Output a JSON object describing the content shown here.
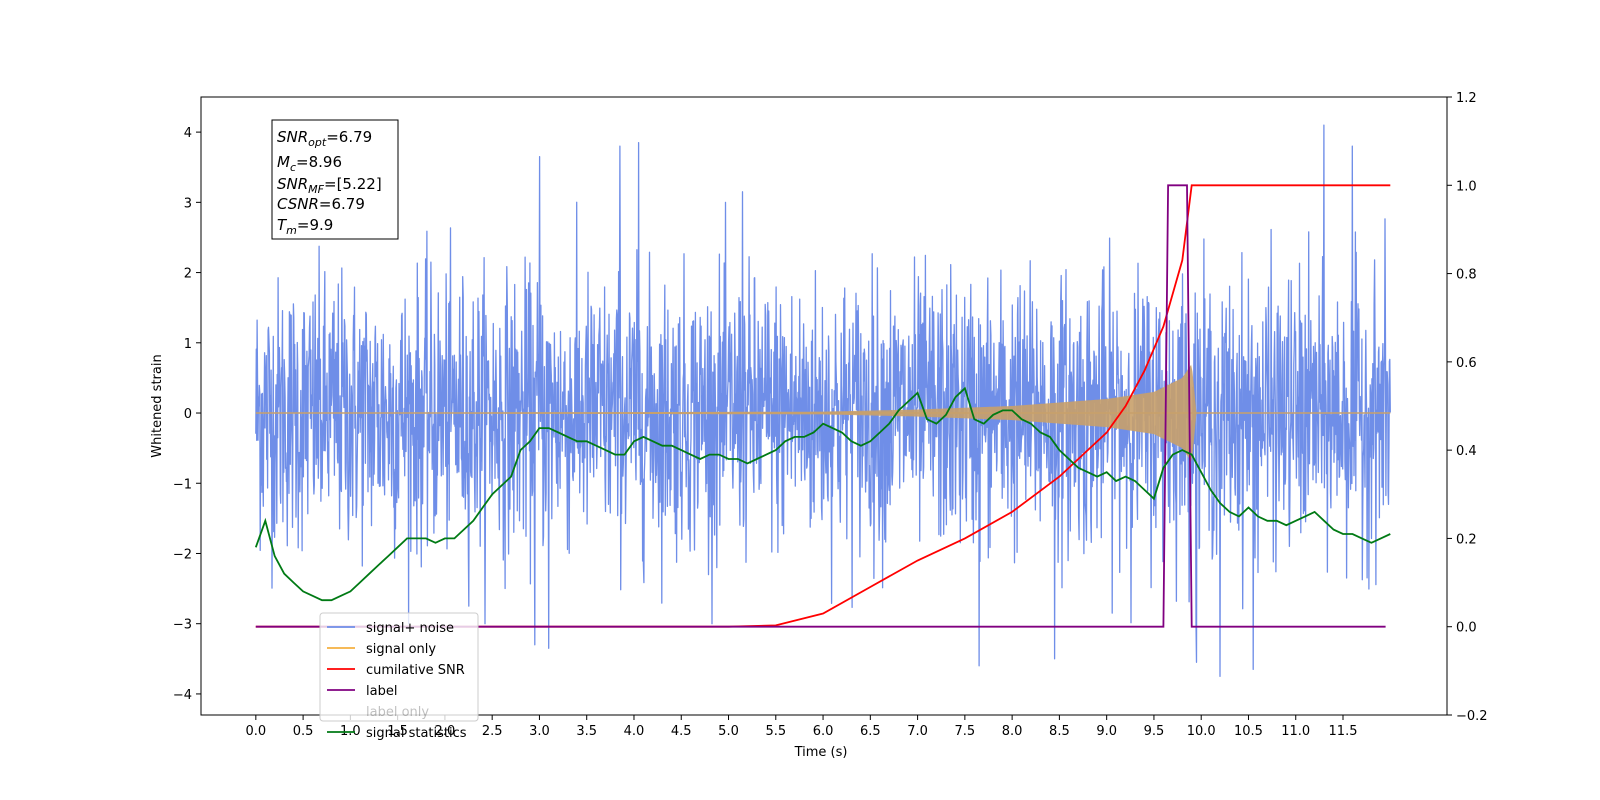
{
  "colors": {
    "signal_noise": "#6f8ee8",
    "signal_only": "#f5b041",
    "signal_fill": "#c8a06a",
    "cumulative_snr": "#ff0000",
    "label": "#800080",
    "signal_statistics": "#007a14"
  },
  "info_box": {
    "snr_opt_base": "SNR",
    "snr_opt_sub": "opt",
    "snr_opt_value": "=6.79",
    "mc_base": "M",
    "mc_sub": "c",
    "mc_value": "=8.96",
    "snr_mf_base": "SNR",
    "snr_mf_sub": "MF",
    "snr_mf_value": "=[5.22]",
    "csnr_text": "CSNR",
    "csnr_value": "=6.79",
    "tm_base": "T",
    "tm_sub": "m",
    "tm_value": "=9.9"
  },
  "chart_data": {
    "type": "line",
    "xlabel": "Time (s)",
    "ylabel_left": "Whitened strain",
    "ylabel_right": "",
    "xlim": [
      -0.58,
      12.6
    ],
    "ylim_left": [
      -4.3,
      4.5
    ],
    "ylim_right": [
      -0.2,
      1.2
    ],
    "x_ticks": [
      "0.0",
      "0.5",
      "1.0",
      "1.5",
      "2.0",
      "2.5",
      "3.0",
      "3.5",
      "4.0",
      "4.5",
      "5.0",
      "5.5",
      "6.0",
      "6.5",
      "7.0",
      "7.5",
      "8.0",
      "8.5",
      "9.0",
      "9.5",
      "10.0",
      "10.5",
      "11.0",
      "11.5"
    ],
    "y_ticks_left": [
      "4",
      "3",
      "2",
      "1",
      "0",
      "−1",
      "−2",
      "−3",
      "−4"
    ],
    "y_ticks_right": [
      "1.2",
      "1.0",
      "0.8",
      "0.6",
      "0.4",
      "0.2",
      "0.0",
      "−0.2"
    ],
    "legend": {
      "placement": "lower-left",
      "entries": [
        "signal+ noise",
        "signal only",
        "cumilative SNR",
        "label",
        "label only",
        "signal statistics"
      ]
    },
    "series": [
      {
        "name": "signal+ noise",
        "axis": "left",
        "x_range": [
          0.0,
          12.0
        ],
        "noise_std": 1.0,
        "extreme_peaks": [
          {
            "x": 3.0,
            "y": 3.65
          },
          {
            "x": 3.85,
            "y": 3.8
          },
          {
            "x": 4.05,
            "y": 3.85
          },
          {
            "x": 5.15,
            "y": 3.15
          },
          {
            "x": 11.3,
            "y": 4.1
          },
          {
            "x": 11.6,
            "y": 3.8
          },
          {
            "x": 2.95,
            "y": -3.3
          },
          {
            "x": 3.1,
            "y": -3.35
          },
          {
            "x": 7.65,
            "y": -3.6
          },
          {
            "x": 10.2,
            "y": -3.75
          },
          {
            "x": 10.55,
            "y": -3.65
          },
          {
            "x": 9.95,
            "y": -3.55
          },
          {
            "x": 8.45,
            "y": -3.5
          }
        ]
      },
      {
        "name": "signal only",
        "axis": "left",
        "type": "chirp",
        "merger_time": 9.9,
        "envelope": [
          [
            0,
            0
          ],
          [
            6,
            0.02
          ],
          [
            7,
            0.05
          ],
          [
            8,
            0.1
          ],
          [
            8.5,
            0.15
          ],
          [
            9,
            0.2
          ],
          [
            9.5,
            0.3
          ],
          [
            9.8,
            0.5
          ],
          [
            9.9,
            0.7
          ],
          [
            9.95,
            0.0
          ],
          [
            12,
            0.0
          ]
        ]
      },
      {
        "name": "cumilative SNR",
        "axis": "right",
        "x": [
          0,
          5.0,
          5.5,
          6.0,
          6.5,
          7.0,
          7.5,
          8.0,
          8.5,
          8.8,
          9.0,
          9.2,
          9.4,
          9.6,
          9.8,
          9.9,
          12.0
        ],
        "y": [
          0,
          0.0,
          0.003,
          0.03,
          0.09,
          0.15,
          0.2,
          0.26,
          0.34,
          0.4,
          0.44,
          0.5,
          0.58,
          0.68,
          0.83,
          1.0,
          1.0
        ]
      },
      {
        "name": "label",
        "axis": "right",
        "x": [
          0.0,
          9.6,
          9.65,
          9.85,
          9.9,
          11.95
        ],
        "y": [
          0.0,
          0.0,
          1.0,
          1.0,
          0.0,
          0.0
        ]
      },
      {
        "name": "signal statistics",
        "axis": "right",
        "x": [
          0.0,
          0.1,
          0.2,
          0.3,
          0.4,
          0.5,
          0.6,
          0.7,
          0.8,
          0.9,
          1.0,
          1.1,
          1.2,
          1.3,
          1.4,
          1.5,
          1.6,
          1.7,
          1.8,
          1.9,
          2.0,
          2.1,
          2.2,
          2.3,
          2.4,
          2.5,
          2.6,
          2.7,
          2.8,
          2.9,
          3.0,
          3.1,
          3.2,
          3.3,
          3.4,
          3.5,
          3.6,
          3.7,
          3.8,
          3.9,
          4.0,
          4.1,
          4.2,
          4.3,
          4.4,
          4.5,
          4.6,
          4.7,
          4.8,
          4.9,
          5.0,
          5.1,
          5.2,
          5.3,
          5.4,
          5.5,
          5.6,
          5.7,
          5.8,
          5.9,
          6.0,
          6.1,
          6.2,
          6.3,
          6.4,
          6.5,
          6.6,
          6.7,
          6.8,
          6.9,
          7.0,
          7.1,
          7.2,
          7.3,
          7.4,
          7.5,
          7.6,
          7.7,
          7.8,
          7.9,
          8.0,
          8.1,
          8.2,
          8.3,
          8.4,
          8.5,
          8.6,
          8.7,
          8.8,
          8.9,
          9.0,
          9.1,
          9.2,
          9.3,
          9.4,
          9.5,
          9.6,
          9.7,
          9.8,
          9.9,
          10.0,
          10.1,
          10.2,
          10.3,
          10.4,
          10.5,
          10.6,
          10.7,
          10.8,
          10.9,
          11.0,
          11.1,
          11.2,
          11.3,
          11.4,
          11.5,
          11.6,
          11.7,
          11.8,
          11.9,
          12.0
        ],
        "y": [
          0.18,
          0.24,
          0.16,
          0.12,
          0.1,
          0.08,
          0.07,
          0.06,
          0.06,
          0.07,
          0.08,
          0.1,
          0.12,
          0.14,
          0.16,
          0.18,
          0.2,
          0.2,
          0.2,
          0.19,
          0.2,
          0.2,
          0.22,
          0.24,
          0.27,
          0.3,
          0.32,
          0.34,
          0.4,
          0.42,
          0.45,
          0.45,
          0.44,
          0.43,
          0.42,
          0.42,
          0.41,
          0.4,
          0.39,
          0.39,
          0.42,
          0.43,
          0.42,
          0.41,
          0.41,
          0.4,
          0.39,
          0.38,
          0.39,
          0.39,
          0.38,
          0.38,
          0.37,
          0.38,
          0.39,
          0.4,
          0.42,
          0.43,
          0.43,
          0.44,
          0.46,
          0.45,
          0.44,
          0.42,
          0.41,
          0.42,
          0.44,
          0.46,
          0.49,
          0.51,
          0.53,
          0.47,
          0.46,
          0.48,
          0.52,
          0.54,
          0.47,
          0.46,
          0.48,
          0.49,
          0.49,
          0.47,
          0.46,
          0.44,
          0.43,
          0.4,
          0.38,
          0.36,
          0.35,
          0.34,
          0.35,
          0.33,
          0.34,
          0.33,
          0.31,
          0.29,
          0.36,
          0.39,
          0.4,
          0.39,
          0.35,
          0.31,
          0.28,
          0.26,
          0.25,
          0.27,
          0.25,
          0.24,
          0.24,
          0.23,
          0.24,
          0.25,
          0.26,
          0.24,
          0.22,
          0.21,
          0.21,
          0.2,
          0.19,
          0.2,
          0.21
        ]
      }
    ]
  }
}
